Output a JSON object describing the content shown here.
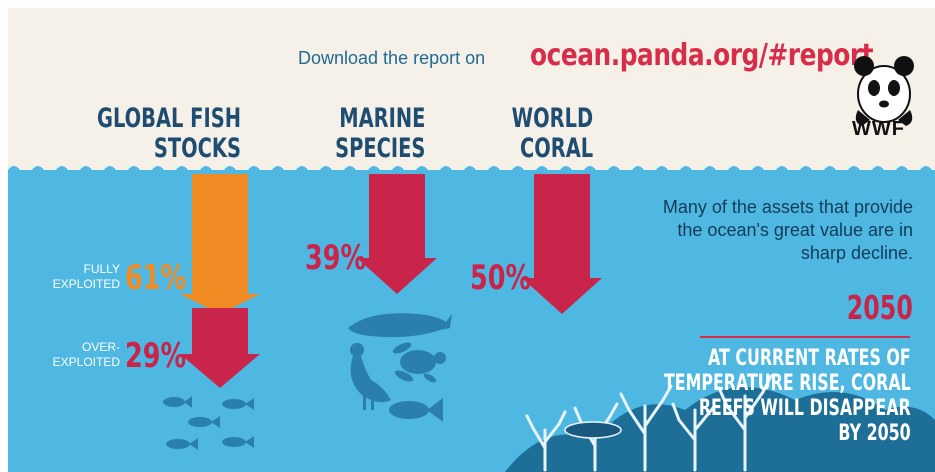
{
  "header": {
    "download_text": "Download the report on",
    "url": "ocean.panda.org/#report",
    "logo_text": "WWF"
  },
  "columns": [
    {
      "line1": "GLOBAL FISH",
      "line2": "STOCKS"
    },
    {
      "line1": "MARINE",
      "line2": "SPECIES"
    },
    {
      "line1": "WORLD",
      "line2": "CORAL"
    }
  ],
  "fish_stocks": {
    "fully_label_1": "FULLY",
    "fully_label_2": "EXPLOITED",
    "fully_value": "61%",
    "over_label_1": "OVER-",
    "over_label_2": "EXPLOITED",
    "over_value": "29%"
  },
  "marine_species": {
    "value": "39%"
  },
  "world_coral": {
    "value": "50%"
  },
  "side": {
    "assets_text": "Many of the assets that provide the ocean's great value are in sharp decline.",
    "year": "2050",
    "coral_line1": "AT CURRENT RATES OF",
    "coral_line2": "TEMPERATURE RISE, CORAL",
    "coral_line3": "REEFS WILL DISAPPEAR",
    "coral_line4": "BY 2050"
  },
  "colors": {
    "cream": "#f5f1e8",
    "sea": "#4fb8e2",
    "crimson": "#c9244a",
    "orange": "#f08a22",
    "navy": "#1f4d72",
    "link": "#d72d48"
  },
  "icons": [
    "panda-logo-icon",
    "fish-icon",
    "whale-icon",
    "bird-icon",
    "turtle-icon",
    "coral-reef-icon"
  ]
}
